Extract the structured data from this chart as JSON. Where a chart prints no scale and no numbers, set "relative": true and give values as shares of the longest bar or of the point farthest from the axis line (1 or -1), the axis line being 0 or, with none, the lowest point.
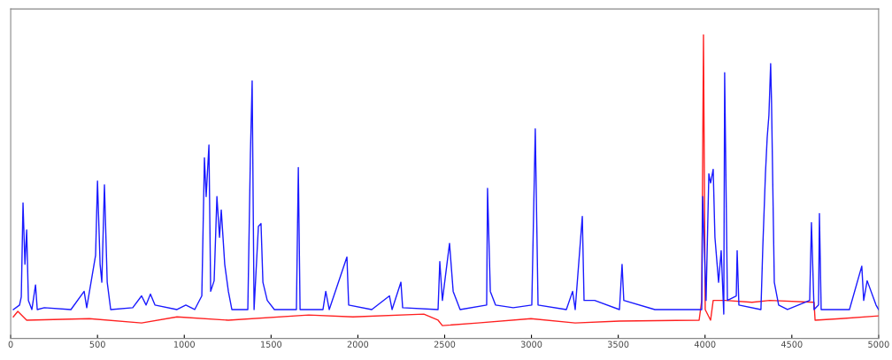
{
  "chart_data": {
    "type": "line",
    "relative": true,
    "xlim": [
      0,
      5000
    ],
    "xticks": [
      0,
      500,
      1000,
      1500,
      2000,
      2500,
      3000,
      3500,
      4000,
      4500,
      5000
    ],
    "grid": false,
    "legend": false,
    "series": [
      {
        "color": "#1a1aff",
        "x": [
          15,
          51,
          61,
          71,
          82,
          92,
          102,
          122,
          143,
          153,
          194,
          347,
          423,
          438,
          489,
          500,
          515,
          525,
          540,
          556,
          576,
          703,
          754,
          780,
          805,
          831,
          958,
          1009,
          1060,
          1101,
          1116,
          1126,
          1142,
          1152,
          1172,
          1188,
          1203,
          1213,
          1233,
          1254,
          1274,
          1366,
          1381,
          1391,
          1402,
          1427,
          1442,
          1453,
          1478,
          1519,
          1646,
          1657,
          1667,
          1799,
          1815,
          1835,
          1937,
          1947,
          2080,
          2182,
          2197,
          2248,
          2258,
          2462,
          2472,
          2487,
          2528,
          2549,
          2589,
          2742,
          2747,
          2763,
          2793,
          2895,
          3002,
          3022,
          3038,
          3201,
          3237,
          3252,
          3293,
          3303,
          3364,
          3507,
          3522,
          3532,
          3711,
          3864,
          3981,
          3986,
          4006,
          4022,
          4032,
          4047,
          4057,
          4078,
          4093,
          4108,
          4113,
          4129,
          4180,
          4185,
          4195,
          4322,
          4333,
          4348,
          4358,
          4368,
          4378,
          4383,
          4399,
          4424,
          4475,
          4603,
          4613,
          4628,
          4654,
          4659,
          4669,
          4832,
          4903,
          4914,
          4934,
          4985,
          5000
        ],
        "values": [
          0.095,
          0.11,
          0.137,
          0.446,
          0.244,
          0.357,
          0.125,
          0.095,
          0.176,
          0.095,
          0.101,
          0.095,
          0.155,
          0.101,
          0.274,
          0.518,
          0.244,
          0.185,
          0.506,
          0.185,
          0.095,
          0.101,
          0.14,
          0.11,
          0.146,
          0.11,
          0.095,
          0.11,
          0.095,
          0.14,
          0.595,
          0.467,
          0.637,
          0.155,
          0.19,
          0.467,
          0.333,
          0.423,
          0.244,
          0.155,
          0.095,
          0.095,
          0.607,
          0.848,
          0.095,
          0.369,
          0.378,
          0.185,
          0.125,
          0.095,
          0.095,
          0.563,
          0.095,
          0.095,
          0.155,
          0.095,
          0.268,
          0.11,
          0.095,
          0.14,
          0.095,
          0.185,
          0.101,
          0.095,
          0.253,
          0.125,
          0.313,
          0.155,
          0.095,
          0.11,
          0.494,
          0.155,
          0.11,
          0.101,
          0.11,
          0.69,
          0.11,
          0.095,
          0.155,
          0.095,
          0.402,
          0.125,
          0.125,
          0.095,
          0.244,
          0.125,
          0.095,
          0.095,
          0.095,
          0.467,
          0.125,
          0.542,
          0.512,
          0.557,
          0.333,
          0.185,
          0.289,
          0.08,
          0.875,
          0.125,
          0.14,
          0.289,
          0.11,
          0.095,
          0.304,
          0.542,
          0.661,
          0.735,
          0.905,
          0.78,
          0.185,
          0.11,
          0.095,
          0.125,
          0.381,
          0.095,
          0.11,
          0.411,
          0.095,
          0.095,
          0.238,
          0.125,
          0.19,
          0.11,
          0.095
        ]
      },
      {
        "color": "#ff2020",
        "x": [
          15,
          41,
          92,
          453,
          754,
          958,
          1254,
          1717,
          1972,
          2380,
          2462,
          2487,
          2691,
          2997,
          3252,
          3507,
          3966,
          3981,
          3991,
          4001,
          4032,
          4047,
          4118,
          4271,
          4373,
          4628,
          4634,
          4780,
          5000
        ],
        "values": [
          0.071,
          0.089,
          0.06,
          0.065,
          0.051,
          0.071,
          0.06,
          0.077,
          0.071,
          0.08,
          0.06,
          0.042,
          0.051,
          0.065,
          0.051,
          0.057,
          0.06,
          0.125,
          1,
          0.095,
          0.06,
          0.125,
          0.125,
          0.119,
          0.125,
          0.119,
          0.06,
          0.065,
          0.074
        ]
      }
    ]
  }
}
